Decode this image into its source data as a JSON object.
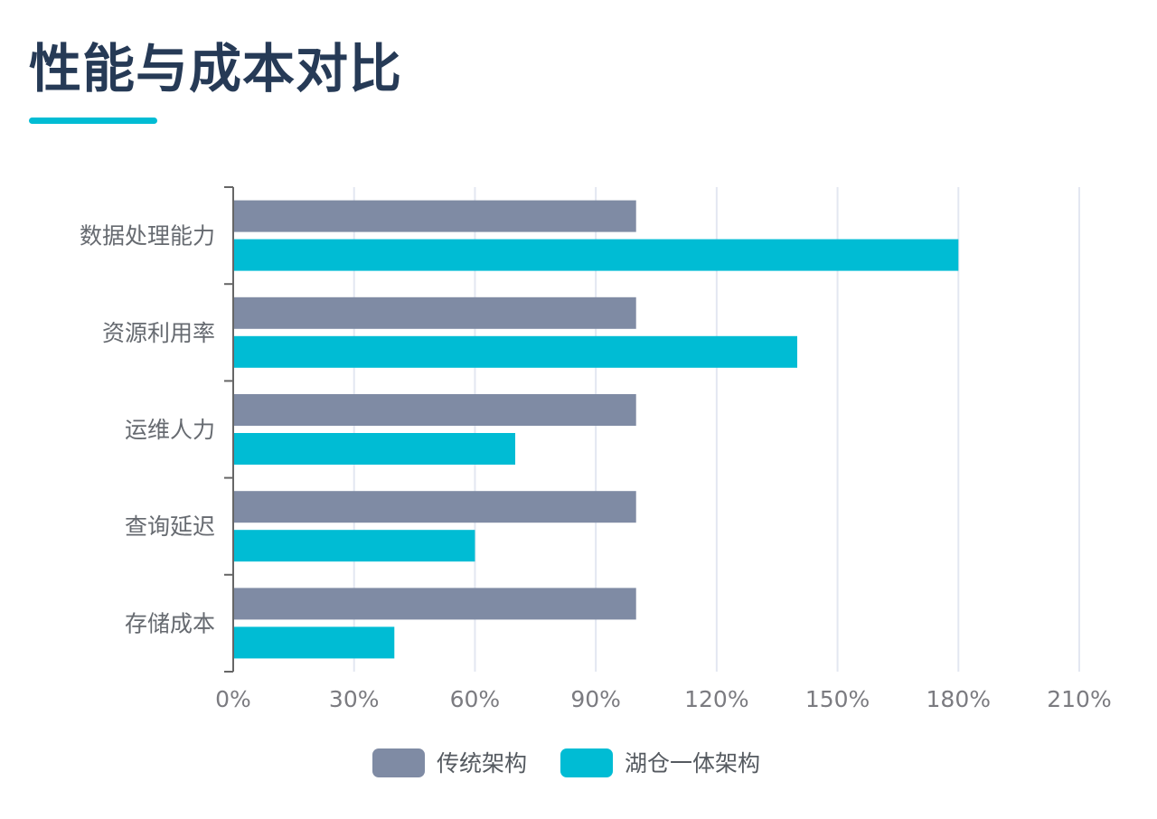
{
  "page": {
    "title": "性能与成本对比"
  },
  "colors": {
    "title": "#263a56",
    "accent": "#00bcd4",
    "traditional": "#7f8ba4",
    "lakehouse": "#00bcd4",
    "grid": "#e3e7f1",
    "axis": "#666666"
  },
  "chart_data": {
    "type": "bar",
    "orientation": "horizontal",
    "categories": [
      "数据处理能力",
      "资源利用率",
      "运维人力",
      "查询延迟",
      "存储成本"
    ],
    "series": [
      {
        "name": "传统架构",
        "color": "#7f8ba4",
        "values": [
          100,
          100,
          100,
          100,
          100
        ]
      },
      {
        "name": "湖仓一体架构",
        "color": "#00bcd4",
        "values": [
          180,
          140,
          70,
          60,
          40
        ]
      }
    ],
    "x_ticks": [
      0,
      30,
      60,
      90,
      120,
      150,
      180,
      210
    ],
    "x_tick_labels": [
      "0%",
      "30%",
      "60%",
      "90%",
      "120%",
      "150%",
      "180%",
      "210%"
    ],
    "xlim": [
      0,
      210
    ],
    "grid": "vertical",
    "legend": "bottom-center"
  }
}
